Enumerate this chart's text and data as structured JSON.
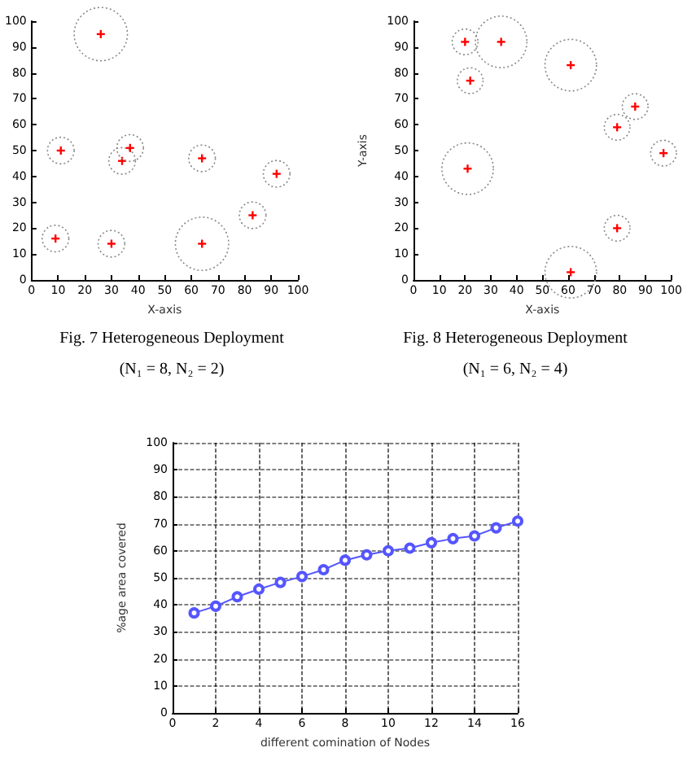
{
  "chart_data": [
    {
      "type": "bubble",
      "title": "Fig. 7 Heterogeneous Deployment",
      "subtitle": "(N₁ = 8, N₂ = 2)",
      "xlabel": "X-axis",
      "xlim": [
        0,
        100
      ],
      "xticks": [
        0,
        10,
        20,
        30,
        40,
        50,
        60,
        70,
        80,
        90,
        100
      ],
      "ylim": [
        0,
        100
      ],
      "yticks": [
        0,
        10,
        20,
        30,
        40,
        50,
        60,
        70,
        80,
        90,
        100
      ],
      "grid": false,
      "marker": "cross",
      "series": [
        {
          "color": "#ff0000",
          "x": [
            26,
            11,
            34,
            37,
            64,
            92,
            83,
            9,
            30,
            64
          ],
          "values": [
            95,
            50,
            46,
            51,
            47,
            41,
            25,
            16,
            14,
            14
          ],
          "sizes": [
            1,
            0.25,
            0.25,
            0.25,
            0.25,
            0.25,
            0.25,
            0.25,
            0.25,
            1
          ]
        }
      ]
    },
    {
      "type": "bubble",
      "title": "Fig. 8 Heterogeneous Deployment",
      "subtitle": "(N₁ = 6, N₂ = 4)",
      "xlabel": "X-axis",
      "ylabel": "Y-axis",
      "xlim": [
        0,
        100
      ],
      "xticks": [
        0,
        10,
        20,
        30,
        40,
        50,
        60,
        70,
        80,
        90,
        100
      ],
      "ylim": [
        0,
        100
      ],
      "yticks": [
        0,
        10,
        20,
        30,
        40,
        50,
        60,
        70,
        80,
        90,
        100
      ],
      "grid": false,
      "marker": "cross",
      "series": [
        {
          "color": "#ff0000",
          "x": [
            20,
            34,
            61,
            22,
            21,
            79,
            86,
            97,
            79,
            61
          ],
          "values": [
            92,
            92,
            83,
            77,
            43,
            59,
            67,
            49,
            20,
            3
          ],
          "sizes": [
            0.25,
            1,
            1,
            0.25,
            1,
            0.25,
            0.25,
            0.25,
            0.25,
            1
          ]
        }
      ]
    },
    {
      "type": "line",
      "xlabel": "different comination of Nodes",
      "ylabel": "%age area covered",
      "xlim": [
        0,
        16
      ],
      "xticks": [
        0,
        2,
        4,
        6,
        8,
        10,
        12,
        14,
        16
      ],
      "ylim": [
        0,
        100
      ],
      "yticks": [
        0,
        10,
        20,
        30,
        40,
        50,
        60,
        70,
        80,
        90,
        100
      ],
      "grid": true,
      "marker": "circle",
      "line_style": "solid",
      "series": [
        {
          "color": "#5555ff",
          "x": [
            1,
            2,
            3,
            4,
            5,
            6,
            7,
            8,
            9,
            10,
            11,
            12,
            13,
            14,
            15,
            16
          ],
          "values": [
            37,
            39.5,
            43,
            45.8,
            48.3,
            50.5,
            53,
            56.5,
            58.5,
            60,
            61,
            63,
            64.5,
            65.5,
            68.5,
            71
          ]
        }
      ]
    }
  ]
}
